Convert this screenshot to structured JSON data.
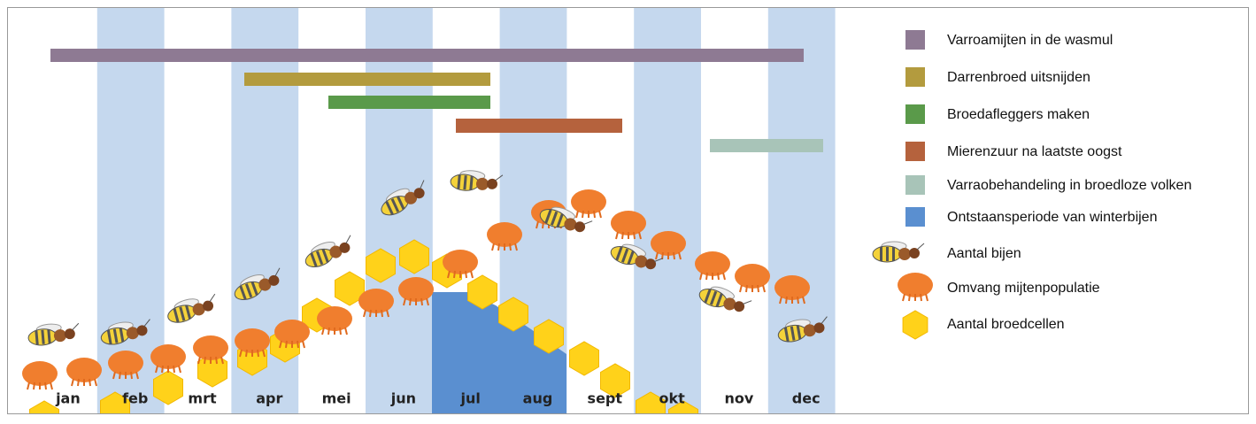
{
  "months": [
    "jan",
    "feb",
    "mrt",
    "apr",
    "mei",
    "jun",
    "jul",
    "aug",
    "sept",
    "okt",
    "nov",
    "dec"
  ],
  "legend": [
    {
      "label": "Varroamijten in de wasmul",
      "color": "#8e7a93"
    },
    {
      "label": "Darrenbroed uitsnijden",
      "color": "#b39b3e"
    },
    {
      "label": "Broedafleggers maken",
      "color": "#5a9a4a"
    },
    {
      "label": "Mierenzuur na laatste oogst",
      "color": "#b5623d"
    },
    {
      "label": "Varraobehandeling in broedloze volken",
      "color": "#a8c4b8"
    },
    {
      "label": "Ontstaansperiode van winterbijen",
      "color": "#5a8fd0"
    },
    {
      "label": "Aantal bijen"
    },
    {
      "label": "Omvang mijtenpopulatie"
    },
    {
      "label": "Aantal broedcellen"
    }
  ]
}
